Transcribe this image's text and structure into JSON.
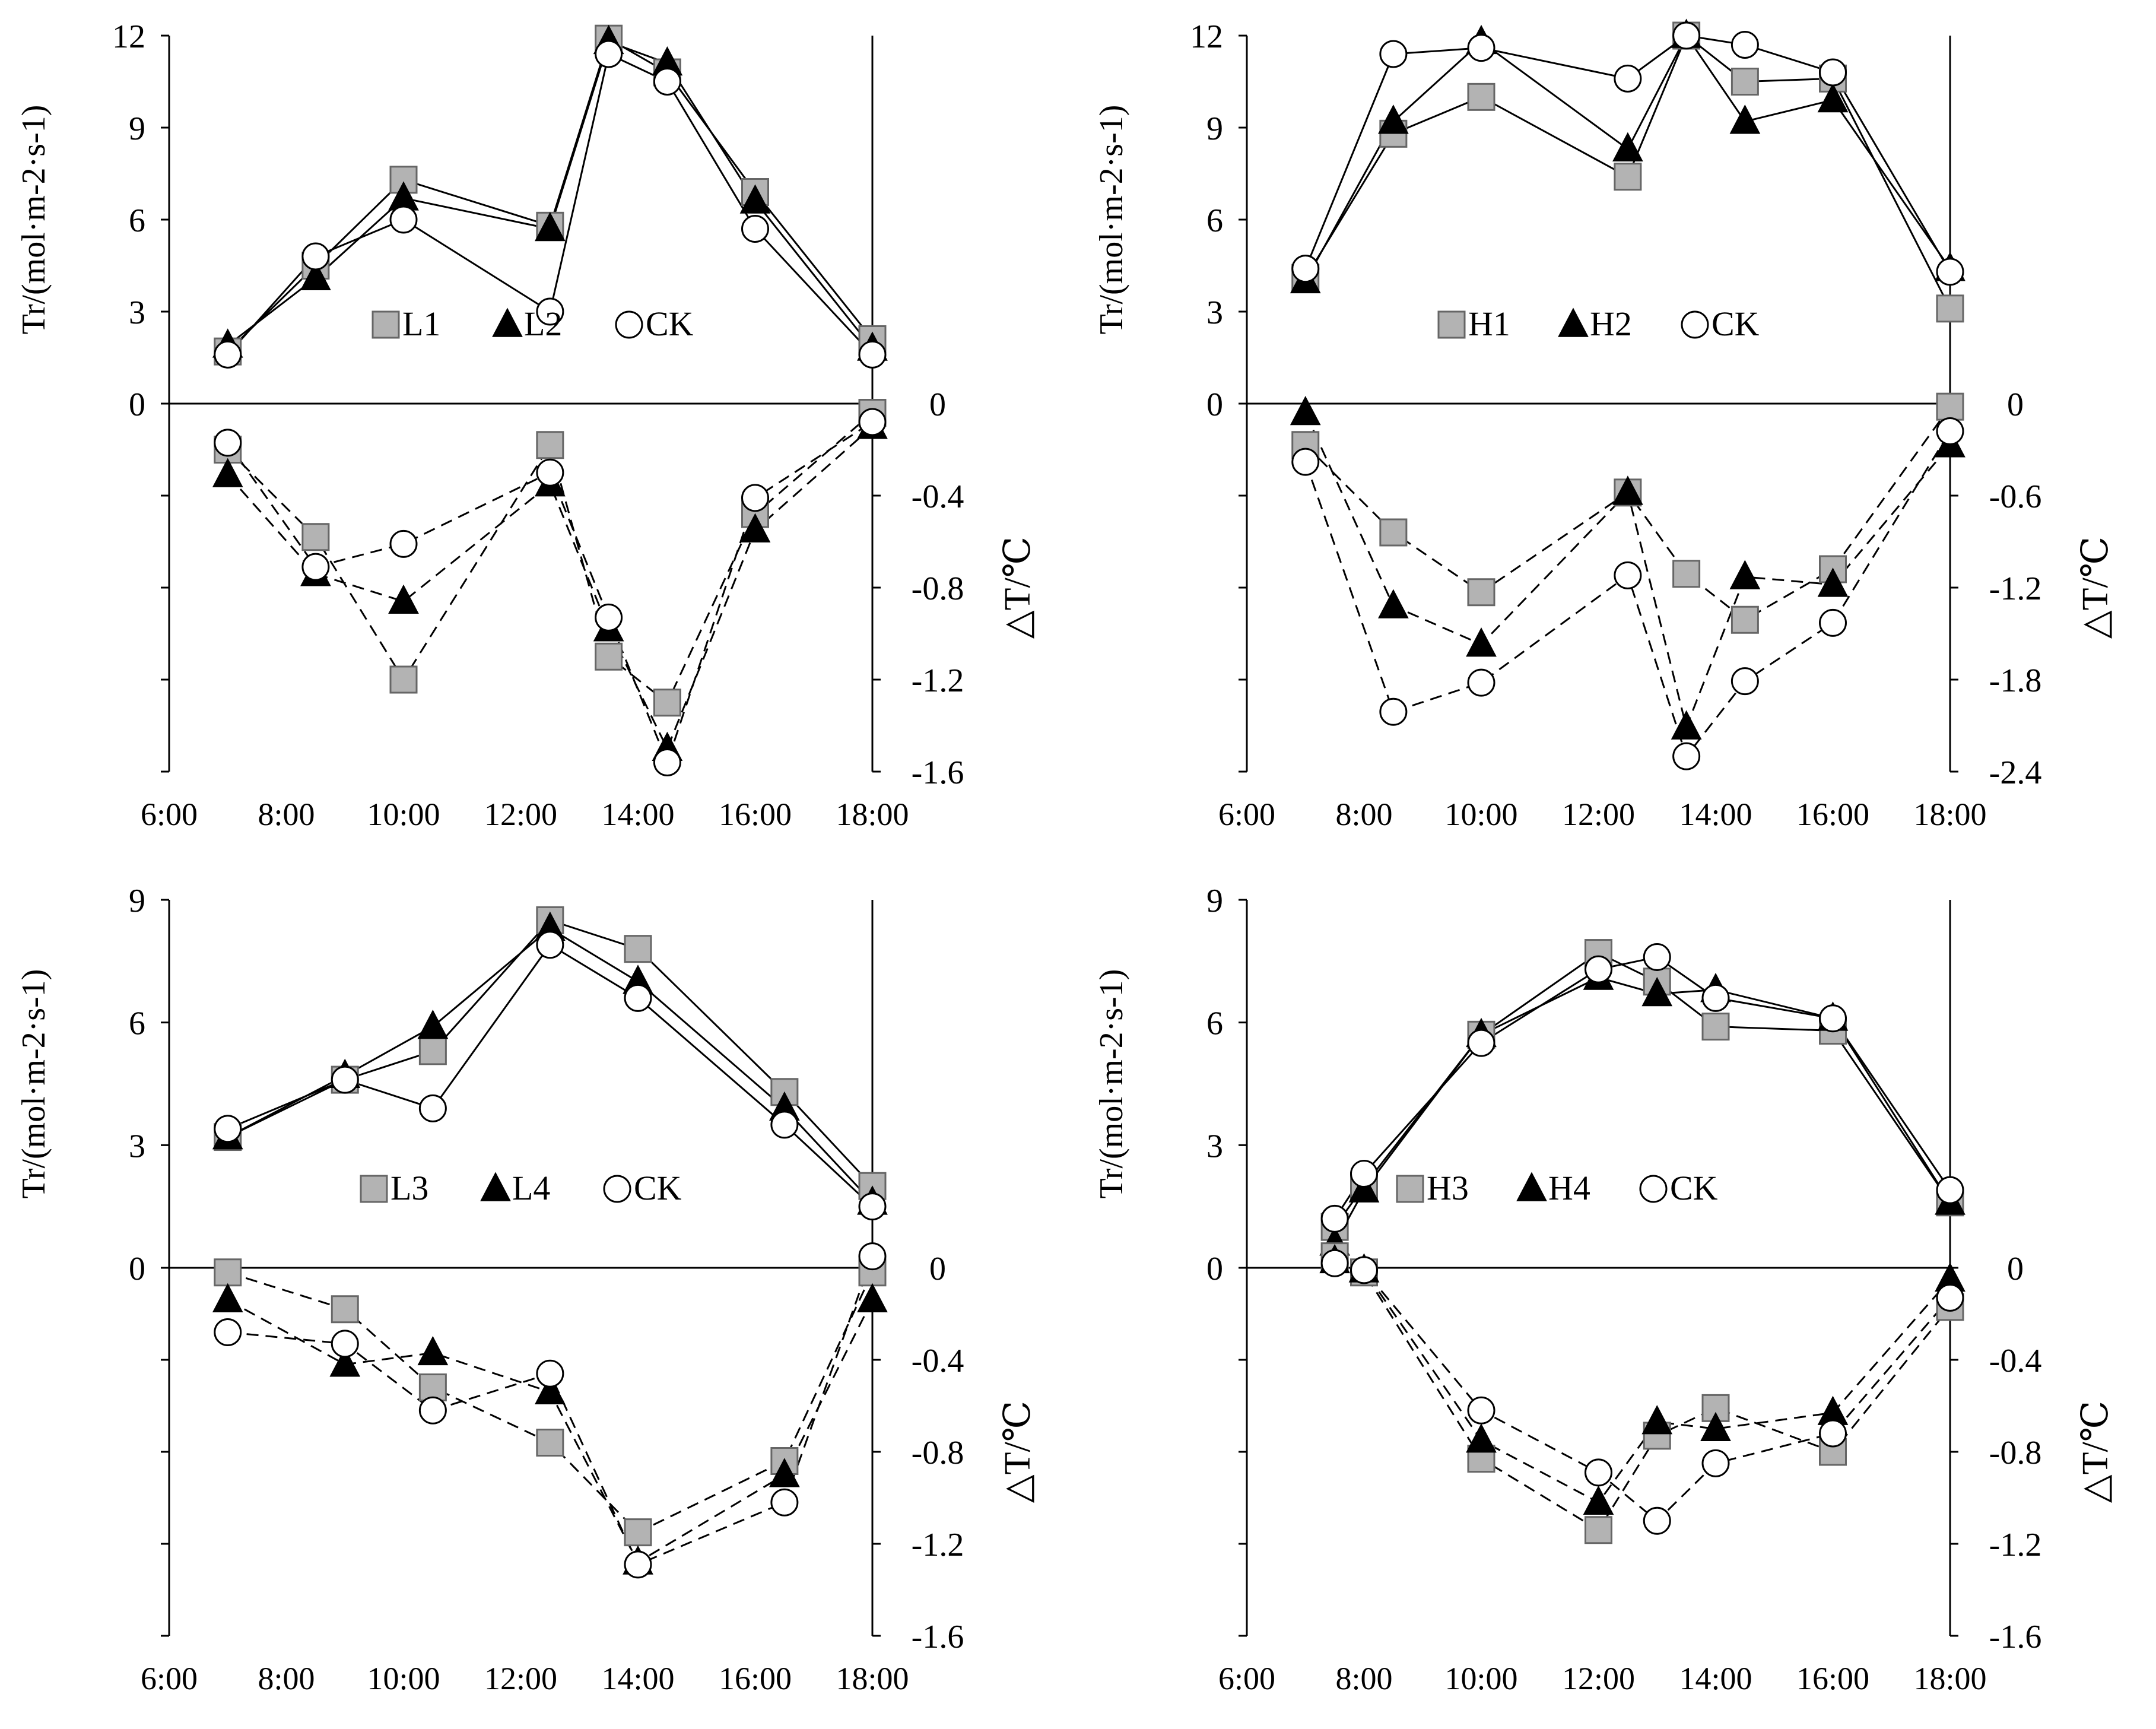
{
  "colors": {
    "axis": "#000000",
    "square_fill": "#b3b3b3",
    "triangle_fill": "#000000",
    "circle_fill": "#ffffff"
  },
  "chart_data": [
    {
      "type": "line",
      "panel": "top-left",
      "x_tick_labels": [
        "6:00",
        "8:00",
        "10:00",
        "12:00",
        "14:00",
        "16:00",
        "18:00"
      ],
      "x_range_hours": [
        6,
        18
      ],
      "tr": {
        "ylabel": "Tr/(mol·m-2·s-1)",
        "ylim": [
          0,
          12
        ],
        "y_ticks": [
          0,
          3,
          6,
          9,
          12
        ],
        "series": [
          {
            "name": "L1",
            "marker": "square",
            "x": [
              7,
              8.5,
              10,
              12.5,
              13.5,
              14.5,
              16,
              18
            ],
            "values": [
              1.7,
              4.5,
              7.3,
              5.8,
              11.9,
              10.8,
              6.9,
              2.1
            ]
          },
          {
            "name": "L2",
            "marker": "triangle",
            "x": [
              7,
              8.5,
              10,
              12.5,
              13.5,
              14.5,
              16,
              18
            ],
            "values": [
              1.9,
              4.1,
              6.7,
              5.7,
              11.8,
              11.1,
              6.6,
              1.8
            ]
          },
          {
            "name": "CK",
            "marker": "circle",
            "x": [
              7,
              8.5,
              10,
              12.5,
              13.5,
              14.5,
              16,
              18
            ],
            "values": [
              1.6,
              4.8,
              6.0,
              3.0,
              11.4,
              10.5,
              5.7,
              1.6
            ]
          }
        ],
        "legend": [
          "L1",
          "L2",
          "CK"
        ]
      },
      "dt": {
        "ylabel": "△T/℃",
        "ylim": [
          -1.6,
          0
        ],
        "y_ticks": [
          "0",
          "-0.4",
          "-0.8",
          "-1.2",
          "-1.6"
        ],
        "series": [
          {
            "name": "L1",
            "marker": "square",
            "x": [
              7,
              8.5,
              10,
              12.5,
              13.5,
              14.5,
              16,
              18
            ],
            "values": [
              -0.2,
              -0.58,
              -1.2,
              -0.18,
              -1.1,
              -1.3,
              -0.48,
              -0.04
            ]
          },
          {
            "name": "L2",
            "marker": "triangle",
            "x": [
              7,
              8.5,
              10,
              12.5,
              13.5,
              14.5,
              16,
              18
            ],
            "values": [
              -0.31,
              -0.74,
              -0.86,
              -0.35,
              -0.98,
              -1.5,
              -0.55,
              -0.1
            ]
          },
          {
            "name": "CK",
            "marker": "circle",
            "x": [
              7,
              8.5,
              10,
              12.5,
              13.5,
              14.5,
              16,
              18
            ],
            "values": [
              -0.17,
              -0.71,
              -0.61,
              -0.3,
              -0.93,
              -1.56,
              -0.41,
              -0.08
            ]
          }
        ]
      }
    },
    {
      "type": "line",
      "panel": "top-right",
      "x_tick_labels": [
        "6:00",
        "8:00",
        "10:00",
        "12:00",
        "14:00",
        "16:00",
        "18:00"
      ],
      "x_range_hours": [
        6,
        18
      ],
      "tr": {
        "ylabel": "Tr/(mol·m-2·s-1)",
        "ylim": [
          0,
          12
        ],
        "y_ticks": [
          0,
          3,
          6,
          9,
          12
        ],
        "series": [
          {
            "name": "H1",
            "marker": "square",
            "x": [
              7,
              8.5,
              10,
              12.5,
              13.5,
              14.5,
              16,
              18
            ],
            "values": [
              4.1,
              8.8,
              10.0,
              7.4,
              12.0,
              10.5,
              10.6,
              3.1
            ]
          },
          {
            "name": "H2",
            "marker": "triangle",
            "x": [
              7,
              8.5,
              10,
              12.5,
              13.5,
              14.5,
              16,
              18
            ],
            "values": [
              4.0,
              9.2,
              11.8,
              8.3,
              12.0,
              9.2,
              9.9,
              4.4
            ]
          },
          {
            "name": "CK",
            "marker": "circle",
            "x": [
              7,
              8.5,
              10,
              12.5,
              13.5,
              14.5,
              16,
              18
            ],
            "values": [
              4.4,
              11.4,
              11.6,
              10.6,
              12.0,
              11.7,
              10.8,
              4.3
            ]
          }
        ],
        "legend": [
          "H1",
          "H2",
          "CK"
        ]
      },
      "dt": {
        "ylabel": "△T/℃",
        "ylim": [
          -2.4,
          0
        ],
        "y_ticks": [
          "0",
          "-0.6",
          "-1.2",
          "-1.8",
          "-2.4"
        ],
        "series": [
          {
            "name": "H1",
            "marker": "square",
            "x": [
              7,
              8.5,
              10,
              12.5,
              13.5,
              14.5,
              16,
              18
            ],
            "values": [
              -0.27,
              -0.84,
              -1.23,
              -0.58,
              -1.11,
              -1.41,
              -1.08,
              -0.02
            ]
          },
          {
            "name": "H2",
            "marker": "triangle",
            "x": [
              7,
              8.5,
              10,
              12.5,
              13.5,
              14.5,
              16,
              18
            ],
            "values": [
              -0.06,
              -1.32,
              -1.57,
              -0.58,
              -2.11,
              -1.13,
              -1.18,
              -0.27
            ]
          },
          {
            "name": "CK",
            "marker": "circle",
            "x": [
              7,
              8.5,
              10,
              12.5,
              13.5,
              14.5,
              16,
              18
            ],
            "values": [
              -0.38,
              -2.01,
              -1.82,
              -1.12,
              -2.3,
              -1.81,
              -1.43,
              -0.18
            ]
          }
        ]
      }
    },
    {
      "type": "line",
      "panel": "bottom-left",
      "x_tick_labels": [
        "6:00",
        "8:00",
        "10:00",
        "12:00",
        "14:00",
        "16:00",
        "18:00"
      ],
      "x_range_hours": [
        6,
        18
      ],
      "tr": {
        "ylabel": "Tr/(mol·m-2·s-1)",
        "ylim": [
          0,
          9
        ],
        "y_ticks": [
          0,
          3,
          6,
          9
        ],
        "series": [
          {
            "name": "L3",
            "marker": "square",
            "x": [
              7,
              9,
              10.5,
              12.5,
              14,
              16.5,
              18
            ],
            "values": [
              3.2,
              4.6,
              5.3,
              8.5,
              7.8,
              4.3,
              2.0
            ]
          },
          {
            "name": "L4",
            "marker": "triangle",
            "x": [
              7,
              9,
              10.5,
              12.5,
              14,
              16.5,
              18
            ],
            "values": [
              3.2,
              4.7,
              5.9,
              8.3,
              7.0,
              3.9,
              1.6
            ]
          },
          {
            "name": "CK",
            "marker": "circle",
            "x": [
              7,
              9,
              10.5,
              12.5,
              14,
              16.5,
              18
            ],
            "values": [
              3.4,
              4.6,
              3.9,
              7.9,
              6.6,
              3.5,
              1.5
            ]
          }
        ],
        "legend": [
          "L3",
          "L4",
          "CK"
        ]
      },
      "dt": {
        "ylabel": "△T/℃",
        "ylim": [
          -1.6,
          0
        ],
        "y_ticks": [
          "0",
          "-0.4",
          "-0.8",
          "-1.2",
          "-1.6"
        ],
        "series": [
          {
            "name": "L3",
            "marker": "square",
            "x": [
              7,
              9,
              10.5,
              12.5,
              14,
              16.5,
              18
            ],
            "values": [
              -0.02,
              -0.18,
              -0.52,
              -0.76,
              -1.15,
              -0.84,
              -0.02
            ]
          },
          {
            "name": "L4",
            "marker": "triangle",
            "x": [
              7,
              9,
              10.5,
              12.5,
              14,
              16.5,
              18
            ],
            "values": [
              -0.14,
              -0.42,
              -0.37,
              -0.54,
              -1.28,
              -0.9,
              -0.14
            ]
          },
          {
            "name": "CK",
            "marker": "circle",
            "x": [
              7,
              9,
              10.5,
              12.5,
              14,
              16.5,
              18
            ],
            "values": [
              -0.28,
              -0.33,
              -0.62,
              -0.46,
              -1.29,
              -1.02,
              0.05
            ]
          }
        ]
      }
    },
    {
      "type": "line",
      "panel": "bottom-right",
      "x_tick_labels": [
        "6:00",
        "8:00",
        "10:00",
        "12:00",
        "14:00",
        "16:00",
        "18:00"
      ],
      "x_range_hours": [
        6,
        18
      ],
      "tr": {
        "ylabel": "Tr/(mol·m-2·s-1)",
        "ylim": [
          0,
          9
        ],
        "y_ticks": [
          0,
          3,
          6,
          9
        ],
        "series": [
          {
            "name": "H3",
            "marker": "square",
            "x": [
              7.5,
              8,
              10,
              12,
              13,
              14,
              16,
              18
            ],
            "values": [
              1.0,
              2.0,
              5.7,
              7.7,
              7.0,
              5.9,
              5.8,
              1.6
            ]
          },
          {
            "name": "H4",
            "marker": "triangle",
            "x": [
              7.5,
              8,
              10,
              12,
              13,
              14,
              16,
              18
            ],
            "values": [
              0.6,
              1.9,
              5.7,
              7.1,
              6.7,
              6.8,
              6.1,
              1.6
            ]
          },
          {
            "name": "CK",
            "marker": "circle",
            "x": [
              7.5,
              8,
              10,
              12,
              13,
              14,
              16,
              18
            ],
            "values": [
              1.2,
              2.3,
              5.5,
              7.3,
              7.6,
              6.6,
              6.1,
              1.9
            ]
          }
        ],
        "legend": [
          "H3",
          "H4",
          "CK"
        ]
      },
      "dt": {
        "ylabel": "△T/℃",
        "ylim": [
          -1.6,
          0
        ],
        "y_ticks": [
          "0",
          "-0.4",
          "-0.8",
          "-1.2",
          "-1.6"
        ],
        "series": [
          {
            "name": "H3",
            "marker": "square",
            "x": [
              7.5,
              8,
              10,
              12,
              13,
              14,
              16,
              18
            ],
            "values": [
              0.05,
              -0.02,
              -0.83,
              -1.14,
              -0.73,
              -0.61,
              -0.8,
              -0.17
            ]
          },
          {
            "name": "H4",
            "marker": "triangle",
            "x": [
              7.5,
              8,
              10,
              12,
              13,
              14,
              16,
              18
            ],
            "values": [
              0.03,
              -0.01,
              -0.75,
              -1.02,
              -0.67,
              -0.7,
              -0.63,
              -0.05
            ]
          },
          {
            "name": "CK",
            "marker": "circle",
            "x": [
              7.5,
              8,
              10,
              12,
              13,
              14,
              16,
              18
            ],
            "values": [
              0.02,
              -0.01,
              -0.62,
              -0.89,
              -1.1,
              -0.85,
              -0.72,
              -0.13
            ]
          }
        ]
      }
    }
  ]
}
